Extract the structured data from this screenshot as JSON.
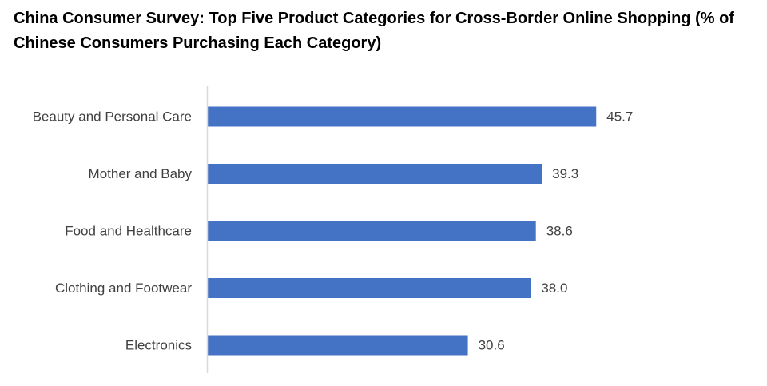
{
  "chart_data": {
    "type": "bar",
    "orientation": "horizontal",
    "title": "China Consumer Survey: Top Five Product Categories for Cross-Border Online Shopping (% of Chinese Consumers Purchasing Each Category)",
    "categories": [
      "Beauty and Personal Care",
      "Mother and Baby",
      "Food and Healthcare",
      "Clothing and Footwear",
      "Electronics"
    ],
    "values": [
      45.7,
      39.3,
      38.6,
      38.0,
      30.6
    ],
    "value_labels": [
      "45.7",
      "39.3",
      "38.6",
      "38.0",
      "30.6"
    ],
    "xlim": [
      0,
      50
    ],
    "xlabel": "",
    "ylabel": "",
    "grid": false,
    "legend": "none",
    "data_labels": true
  },
  "colors": {
    "bar": "#4472C4",
    "axis": "#D9D9D9",
    "text": "#404040",
    "title": "#000000"
  }
}
